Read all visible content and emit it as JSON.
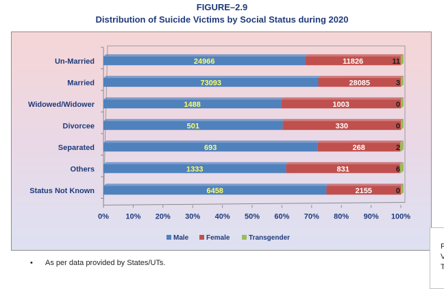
{
  "figure_label": "FIGURE–2.9",
  "title": "Distribution of Suicide Victims by Social Status during 2020",
  "footnote": "As per data provided by States/UTs.",
  "footnote_bullet": "•",
  "side_fragment": [
    "F",
    "V",
    "T"
  ],
  "colors": {
    "male": "#4f81bd",
    "female": "#c0504d",
    "transgender": "#9bbb59",
    "label_male": "#ffff66",
    "label_other": "#ffffff"
  },
  "chart_data": {
    "type": "bar",
    "orientation": "horizontal",
    "stacking": "percent",
    "categories": [
      "Un-Married",
      "Married",
      "Widowed/Widower",
      "Divorcee",
      "Separated",
      "Others",
      "Status Not Known"
    ],
    "series": [
      {
        "name": "Male",
        "values": [
          24966,
          73093,
          1488,
          501,
          693,
          1333,
          6458
        ]
      },
      {
        "name": "Female",
        "values": [
          11826,
          28085,
          1003,
          330,
          268,
          831,
          2155
        ]
      },
      {
        "name": "Transgender",
        "values": [
          11,
          3,
          0,
          0,
          2,
          6,
          0
        ]
      }
    ],
    "xticks": [
      "0%",
      "10%",
      "20%",
      "30%",
      "40%",
      "50%",
      "60%",
      "70%",
      "80%",
      "90%",
      "100%"
    ],
    "xlim": [
      0,
      100
    ],
    "legend_position": "bottom"
  }
}
